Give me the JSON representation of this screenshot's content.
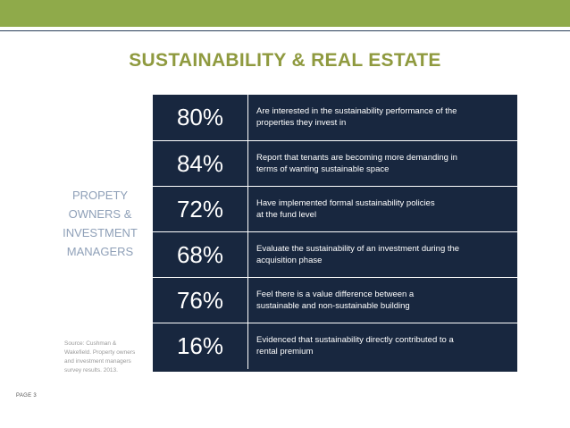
{
  "slide": {
    "title": "SUSTAINABILITY & REAL ESTATE",
    "side_label": "PROPETY\nOWNERS &\nINVESTMENT\nMANAGERS",
    "source": "Source: Cushman & Wakefield. Property owners and investment managers survey results. 2013.",
    "page_label": "PAGE 3",
    "colors": {
      "top_bar": "#8faa4a",
      "title": "#8f9a3f",
      "panel": "#18273f",
      "side_label": "#8fa0b8"
    }
  },
  "stats": [
    {
      "pct": "80%",
      "desc": "Are interested in the sustainability performance of the\nproperties they invest in"
    },
    {
      "pct": "84%",
      "desc": "Report that tenants are becoming more demanding in\nterms of wanting sustainable space"
    },
    {
      "pct": "72%",
      "desc": "Have implemented formal sustainability policies\nat the fund level"
    },
    {
      "pct": "68%",
      "desc": "Evaluate the sustainability of an investment during the\nacquisition phase"
    },
    {
      "pct": "76%",
      "desc": "Feel there is a value difference between a\nsustainable and non-sustainable building"
    },
    {
      "pct": "16%",
      "desc": "Evidenced that sustainability directly contributed to a\nrental premium"
    }
  ]
}
